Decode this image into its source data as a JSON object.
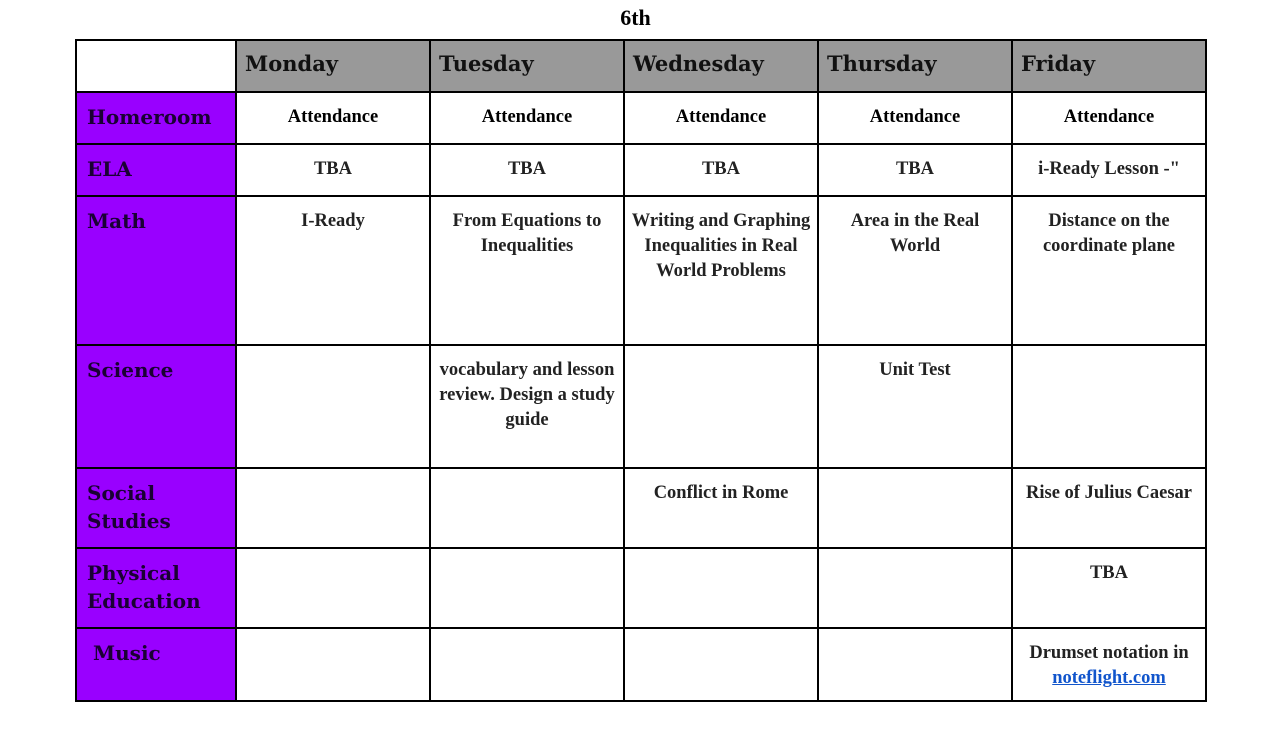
{
  "title": "6th",
  "colors": {
    "subject_bg": "#9900ff",
    "header_bg": "#999999",
    "link": "#1155cc"
  },
  "days": [
    "Monday",
    "Tuesday",
    "Wednesday",
    "Thursday",
    "Friday"
  ],
  "rows": [
    {
      "subject": "Homeroom",
      "cells": [
        "Attendance",
        "Attendance",
        "Attendance",
        "Attendance",
        "Attendance"
      ]
    },
    {
      "subject": "ELA",
      "cells": [
        "TBA",
        "TBA",
        "TBA",
        "TBA",
        "i-Ready Lesson -\""
      ]
    },
    {
      "subject": "Math",
      "cells": [
        "I-Ready",
        "From Equations to Inequalities",
        "Writing and Graphing Inequalities in Real World Problems",
        "Area in the Real World",
        "Distance on the coordinate plane"
      ]
    },
    {
      "subject": "Science",
      "cells": [
        "",
        "vocabulary and lesson review. Design a study guide",
        "",
        "Unit Test",
        ""
      ]
    },
    {
      "subject": "Social Studies",
      "cells": [
        "",
        "",
        "Conflict in Rome",
        "",
        "Rise of Julius Caesar"
      ]
    },
    {
      "subject": "Physical Education",
      "cells": [
        "",
        "",
        "",
        "",
        "TBA"
      ]
    },
    {
      "subject": "Music",
      "cells": [
        "",
        "",
        "",
        "",
        ""
      ],
      "music_friday": {
        "text": "Drumset notation in",
        "link": "noteflight.com"
      }
    }
  ]
}
